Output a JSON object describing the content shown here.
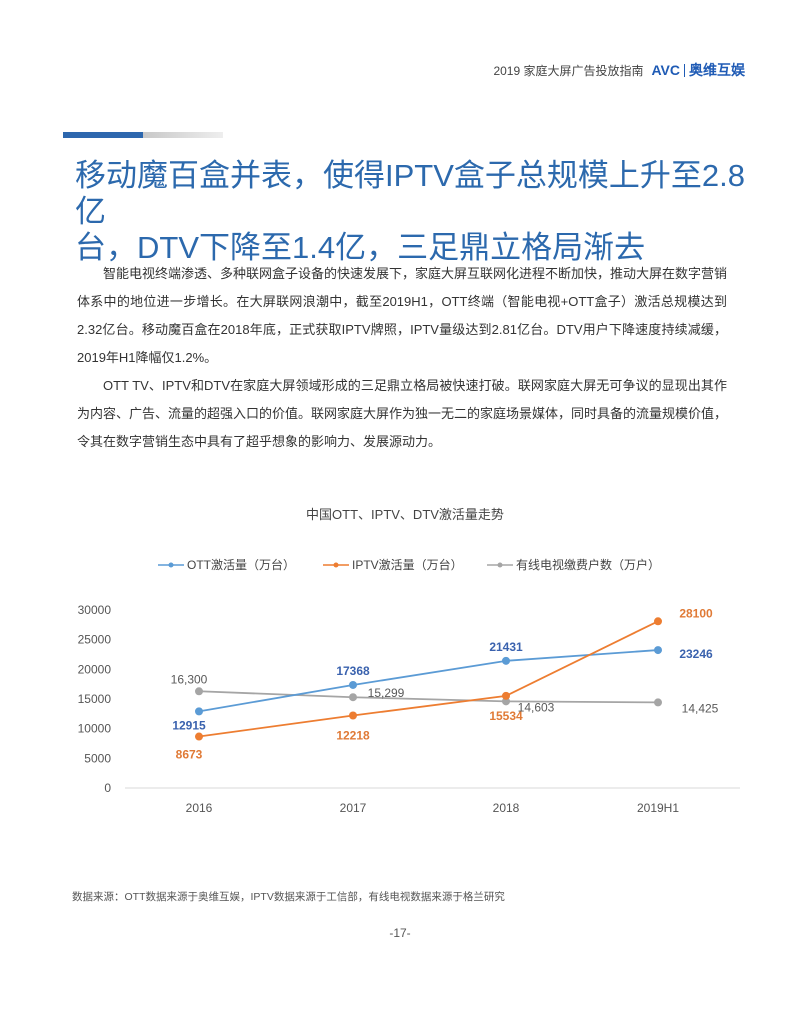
{
  "header": {
    "text": "2019 家庭大屏广告投放指南",
    "logo": "AVC|奥维互娱"
  },
  "title": [
    "移动魔百盒并表，使得IPTV盒子总规模上升至2.8亿",
    "台，DTV下降至1.4亿，三足鼎立格局渐去"
  ],
  "paragraphs": [
    "智能电视终端渗透、多种联网盒子设备的快速发展下，家庭大屏互联网化进程不断加快，推动大屏在数字营销体系中的地位进一步增长。在大屏联网浪潮中，截至2019H1，OTT终端（智能电视+OTT盒子）激活总规模达到2.32亿台。移动魔百盒在2018年底，正式获取IPTV牌照，IPTV量级达到2.81亿台。DTV用户下降速度持续减缓，2019年H1降幅仅1.2%。",
    "OTT TV、IPTV和DTV在家庭大屏领域形成的三足鼎立格局被快速打破。联网家庭大屏无可争议的显现出其作为内容、广告、流量的超强入口的价值。联网家庭大屏作为独一无二的家庭场景媒体，同时具备的流量规模价值，令其在数字营销生态中具有了超乎想象的影响力、发展源动力。"
  ],
  "chart_data": {
    "type": "line",
    "title": "中国OTT、IPTV、DTV激活量走势",
    "categories": [
      "2016",
      "2017",
      "2018",
      "2019H1"
    ],
    "ylim": [
      0,
      30000
    ],
    "yticks": [
      "0",
      "5000",
      "10000",
      "15000",
      "20000",
      "25000",
      "30000"
    ],
    "legend_position": "top",
    "grid": false,
    "series": [
      {
        "name": "OTT激活量（万台）",
        "color": "#5b9bd5",
        "label_color": "#3a62ae",
        "values": [
          12915,
          17368,
          21431,
          23246
        ],
        "labels": [
          "12915",
          "17368",
          "21431",
          "23246"
        ]
      },
      {
        "name": "IPTV激活量（万台）",
        "color": "#ed7d31",
        "label_color": "#e07a36",
        "values": [
          8673,
          12218,
          15534,
          28100
        ],
        "labels": [
          "8673",
          "12218",
          "15534",
          "28100"
        ]
      },
      {
        "name": "有线电视缴费户数（万户）",
        "color": "#a5a5a5",
        "label_color": "#595959",
        "values": [
          16300,
          15299,
          14603,
          14425
        ],
        "labels": [
          "16,300",
          "15,299",
          "14,603",
          "14,425"
        ]
      }
    ]
  },
  "source": "数据来源：OTT数据来源于奥维互娱，IPTV数据来源于工信部，有线电视数据来源于格兰研究",
  "page_number": "-17-"
}
